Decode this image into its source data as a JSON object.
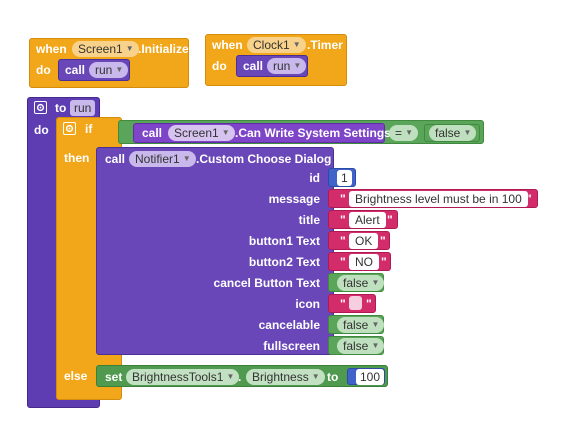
{
  "colors": {
    "event": "#f2a71b",
    "procedure": "#5e3db3",
    "procedure_call": "#6a47b8",
    "component": "#7e45c8",
    "logic": "#5ba55b",
    "text": "#d22d6a",
    "math": "#3f63c8",
    "setter": "#4f9a4f"
  },
  "event1": {
    "when": "when",
    "component": "Screen1",
    "event": ".Initialize",
    "do": "do",
    "call": "call",
    "proc": "run"
  },
  "event2": {
    "when": "when",
    "component": "Clock1",
    "event": ".Timer",
    "do": "do",
    "call": "call",
    "proc": "run"
  },
  "proc_def": {
    "to": "to",
    "name": "run",
    "do": "do"
  },
  "if_block": {
    "if": "if",
    "then": "then",
    "else": "else"
  },
  "condition": {
    "call": "call",
    "component": "Screen1",
    "method": ".Can Write System Settings",
    "op": "=",
    "value": "false"
  },
  "dialog": {
    "call": "call",
    "component": "Notifier1",
    "method": ".Custom Choose Dialog",
    "params": [
      {
        "label": "id",
        "kind": "number",
        "value": "1"
      },
      {
        "label": "message",
        "kind": "text",
        "value": "Brightness level must be in 100"
      },
      {
        "label": "title",
        "kind": "text",
        "value": "Alert"
      },
      {
        "label": "button1 Text",
        "kind": "text",
        "value": "OK"
      },
      {
        "label": "button2 Text",
        "kind": "text",
        "value": "NO"
      },
      {
        "label": "cancel Button Text",
        "kind": "logic",
        "value": "false"
      },
      {
        "label": "icon",
        "kind": "text",
        "value": ""
      },
      {
        "label": "cancelable",
        "kind": "logic",
        "value": "false"
      },
      {
        "label": "fullscreen",
        "kind": "logic",
        "value": "false"
      }
    ]
  },
  "setter": {
    "set": "set",
    "component": "BrightnessTools1",
    "dot": ".",
    "property": "Brightness",
    "to": "to",
    "value": "100"
  },
  "quote": "\"",
  "caret": "▼"
}
